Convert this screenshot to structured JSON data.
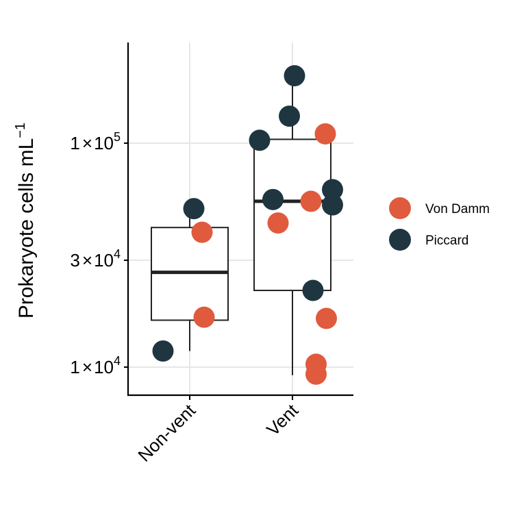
{
  "chart_data": {
    "type": "box",
    "ylabel": "Prokaryote cells  mL",
    "ylabel_superscript": "−1",
    "yscale": "log10",
    "ylim": [
      7000,
      250000
    ],
    "yticks": [
      {
        "value": 10000,
        "mantissa": "1",
        "times": "×",
        "base": "10",
        "exponent": "4"
      },
      {
        "value": 30000,
        "mantissa": "3",
        "times": "×",
        "base": "10",
        "exponent": "4"
      },
      {
        "value": 100000,
        "mantissa": "1",
        "times": "×",
        "base": "10",
        "exponent": "5"
      }
    ],
    "categories": [
      "Non-vent",
      "Vent"
    ],
    "boxes": [
      {
        "category": "Non-vent",
        "lower_whisker": 11800,
        "q1": 16200,
        "median": 26500,
        "q3": 42000,
        "upper_whisker": 51000
      },
      {
        "category": "Vent",
        "lower_whisker": 9200,
        "q1": 22000,
        "median": 55000,
        "q3": 104000,
        "upper_whisker": 200000
      }
    ],
    "legend": {
      "position": "right"
    },
    "series": [
      {
        "name": "Von Damm",
        "color": "#e05a3e",
        "points": [
          {
            "category": "Non-vent",
            "jitter": 0.12,
            "y": 40000
          },
          {
            "category": "Non-vent",
            "jitter": 0.14,
            "y": 16700
          },
          {
            "category": "Vent",
            "jitter": 0.32,
            "y": 110000
          },
          {
            "category": "Vent",
            "jitter": 0.18,
            "y": 55000
          },
          {
            "category": "Vent",
            "jitter": -0.14,
            "y": 44000
          },
          {
            "category": "Vent",
            "jitter": 0.33,
            "y": 16500
          },
          {
            "category": "Vent",
            "jitter": 0.23,
            "y": 10300
          },
          {
            "category": "Vent",
            "jitter": 0.23,
            "y": 9300
          }
        ]
      },
      {
        "name": "Piccard",
        "color": "#1f3641",
        "points": [
          {
            "category": "Non-vent",
            "jitter": 0.04,
            "y": 51000
          },
          {
            "category": "Non-vent",
            "jitter": -0.26,
            "y": 11800
          },
          {
            "category": "Vent",
            "jitter": 0.02,
            "y": 200000
          },
          {
            "category": "Vent",
            "jitter": -0.03,
            "y": 132000
          },
          {
            "category": "Vent",
            "jitter": -0.32,
            "y": 103000
          },
          {
            "category": "Vent",
            "jitter": 0.39,
            "y": 62000
          },
          {
            "category": "Vent",
            "jitter": -0.19,
            "y": 56000
          },
          {
            "category": "Vent",
            "jitter": 0.39,
            "y": 53000
          },
          {
            "category": "Vent",
            "jitter": 0.2,
            "y": 22000
          }
        ]
      }
    ]
  }
}
